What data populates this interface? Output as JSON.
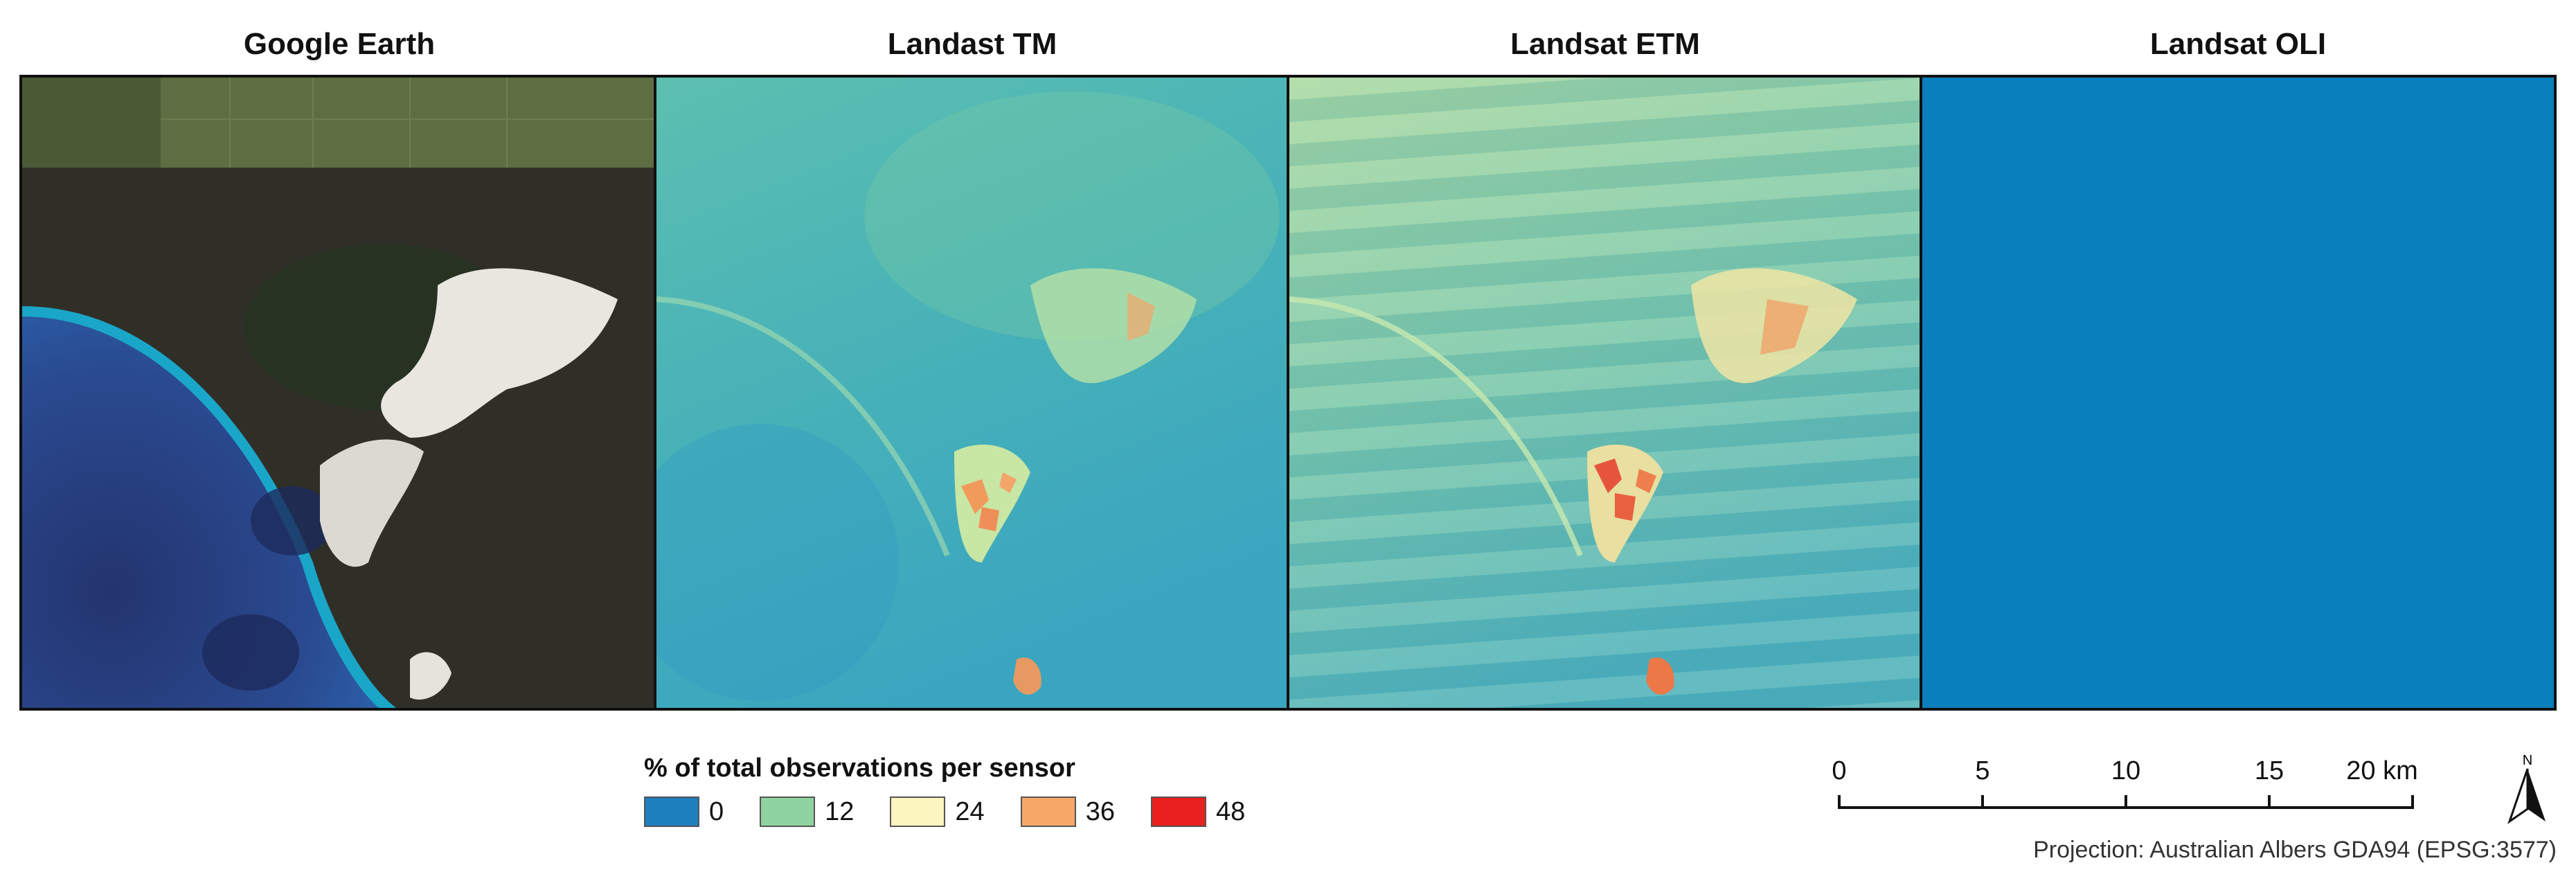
{
  "panels": [
    {
      "title": "Google Earth"
    },
    {
      "title": "Landast TM"
    },
    {
      "title": "Landsat ETM"
    },
    {
      "title": "Landsat OLI"
    }
  ],
  "legend": {
    "title": "% of total observations per sensor",
    "items": [
      {
        "label": "0",
        "color": "#1e7fbf"
      },
      {
        "label": "12",
        "color": "#8fd4a0"
      },
      {
        "label": "24",
        "color": "#fbf5bf"
      },
      {
        "label": "36",
        "color": "#f7a868"
      },
      {
        "label": "48",
        "color": "#e8211e"
      }
    ]
  },
  "scale_bar": {
    "ticks": [
      "0",
      "5",
      "10",
      "15",
      "20 km"
    ]
  },
  "north_arrow": {
    "label": "N",
    "icon": "north-arrow-icon"
  },
  "projection": "Projection: Australian Albers GDA94 (EPSG:3577)"
}
